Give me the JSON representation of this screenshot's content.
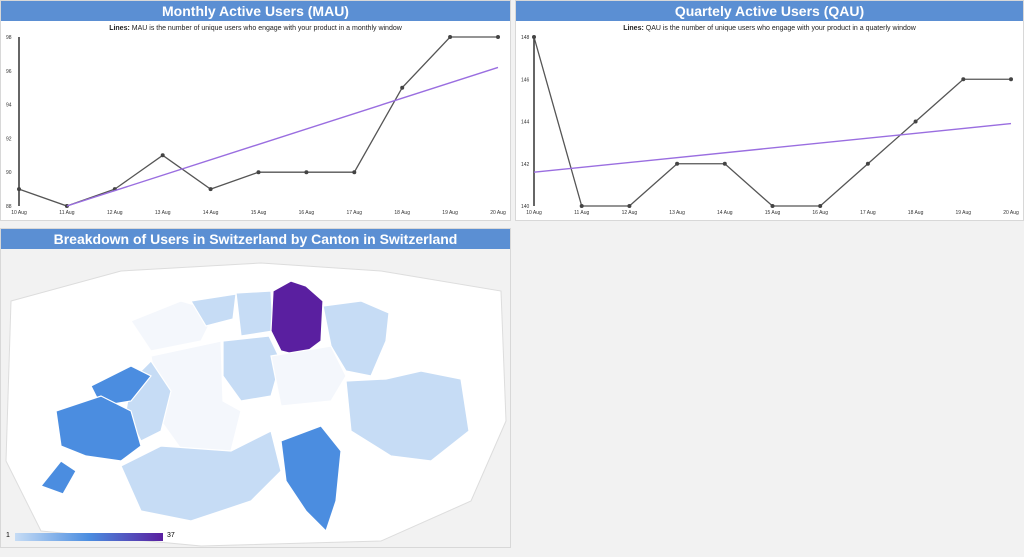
{
  "mau": {
    "title": "Monthly Active Users (MAU)",
    "subtitle_bold": "Lines:",
    "subtitle": " MAU is the number of unique users who engage with your product in a monthly window"
  },
  "qau": {
    "title": "Quartely Active Users (QAU)",
    "subtitle_bold": "Lines:",
    "subtitle": " QAU is the number of unique users who engage with your product in a quaterly window"
  },
  "map": {
    "title": "Breakdown of Users in Switzerland by Canton in Switzerland",
    "legend_min": "1",
    "legend_max": "37",
    "colors": {
      "low": "#c6dcf5",
      "mid": "#4b8de0",
      "high": "#5a1fa0"
    }
  },
  "chart_data": [
    {
      "type": "line",
      "title": "Monthly Active Users (MAU)",
      "x": [
        "10 Aug",
        "11 Aug",
        "12 Aug",
        "13 Aug",
        "14 Aug",
        "15 Aug",
        "16 Aug",
        "17 Aug",
        "18 Aug",
        "19 Aug",
        "20 Aug"
      ],
      "series": [
        {
          "name": "MAU",
          "values": [
            89,
            88,
            89,
            91,
            89,
            90,
            90,
            90,
            95,
            98,
            98
          ],
          "color": "#555555"
        }
      ],
      "trendline": {
        "start": 88,
        "end": 96.2,
        "color": "#9a6ee0"
      },
      "yticks": [
        "88",
        "90",
        "92",
        "94",
        "96",
        "98"
      ],
      "ylim": [
        88,
        98
      ]
    },
    {
      "type": "line",
      "title": "Quartely Active Users (QAU)",
      "x": [
        "10 Aug",
        "11 Aug",
        "12 Aug",
        "13 Aug",
        "14 Aug",
        "15 Aug",
        "16 Aug",
        "17 Aug",
        "18 Aug",
        "19 Aug",
        "20 Aug"
      ],
      "series": [
        {
          "name": "QAU",
          "values": [
            148,
            140,
            140,
            142,
            142,
            140,
            140,
            142,
            144,
            146,
            146
          ],
          "color": "#555555"
        }
      ],
      "trendline": {
        "start": 141.6,
        "end": 143.9,
        "color": "#9a6ee0"
      },
      "yticks": [
        "140",
        "142",
        "144",
        "146",
        "148"
      ],
      "ylim": [
        140,
        148
      ]
    }
  ]
}
